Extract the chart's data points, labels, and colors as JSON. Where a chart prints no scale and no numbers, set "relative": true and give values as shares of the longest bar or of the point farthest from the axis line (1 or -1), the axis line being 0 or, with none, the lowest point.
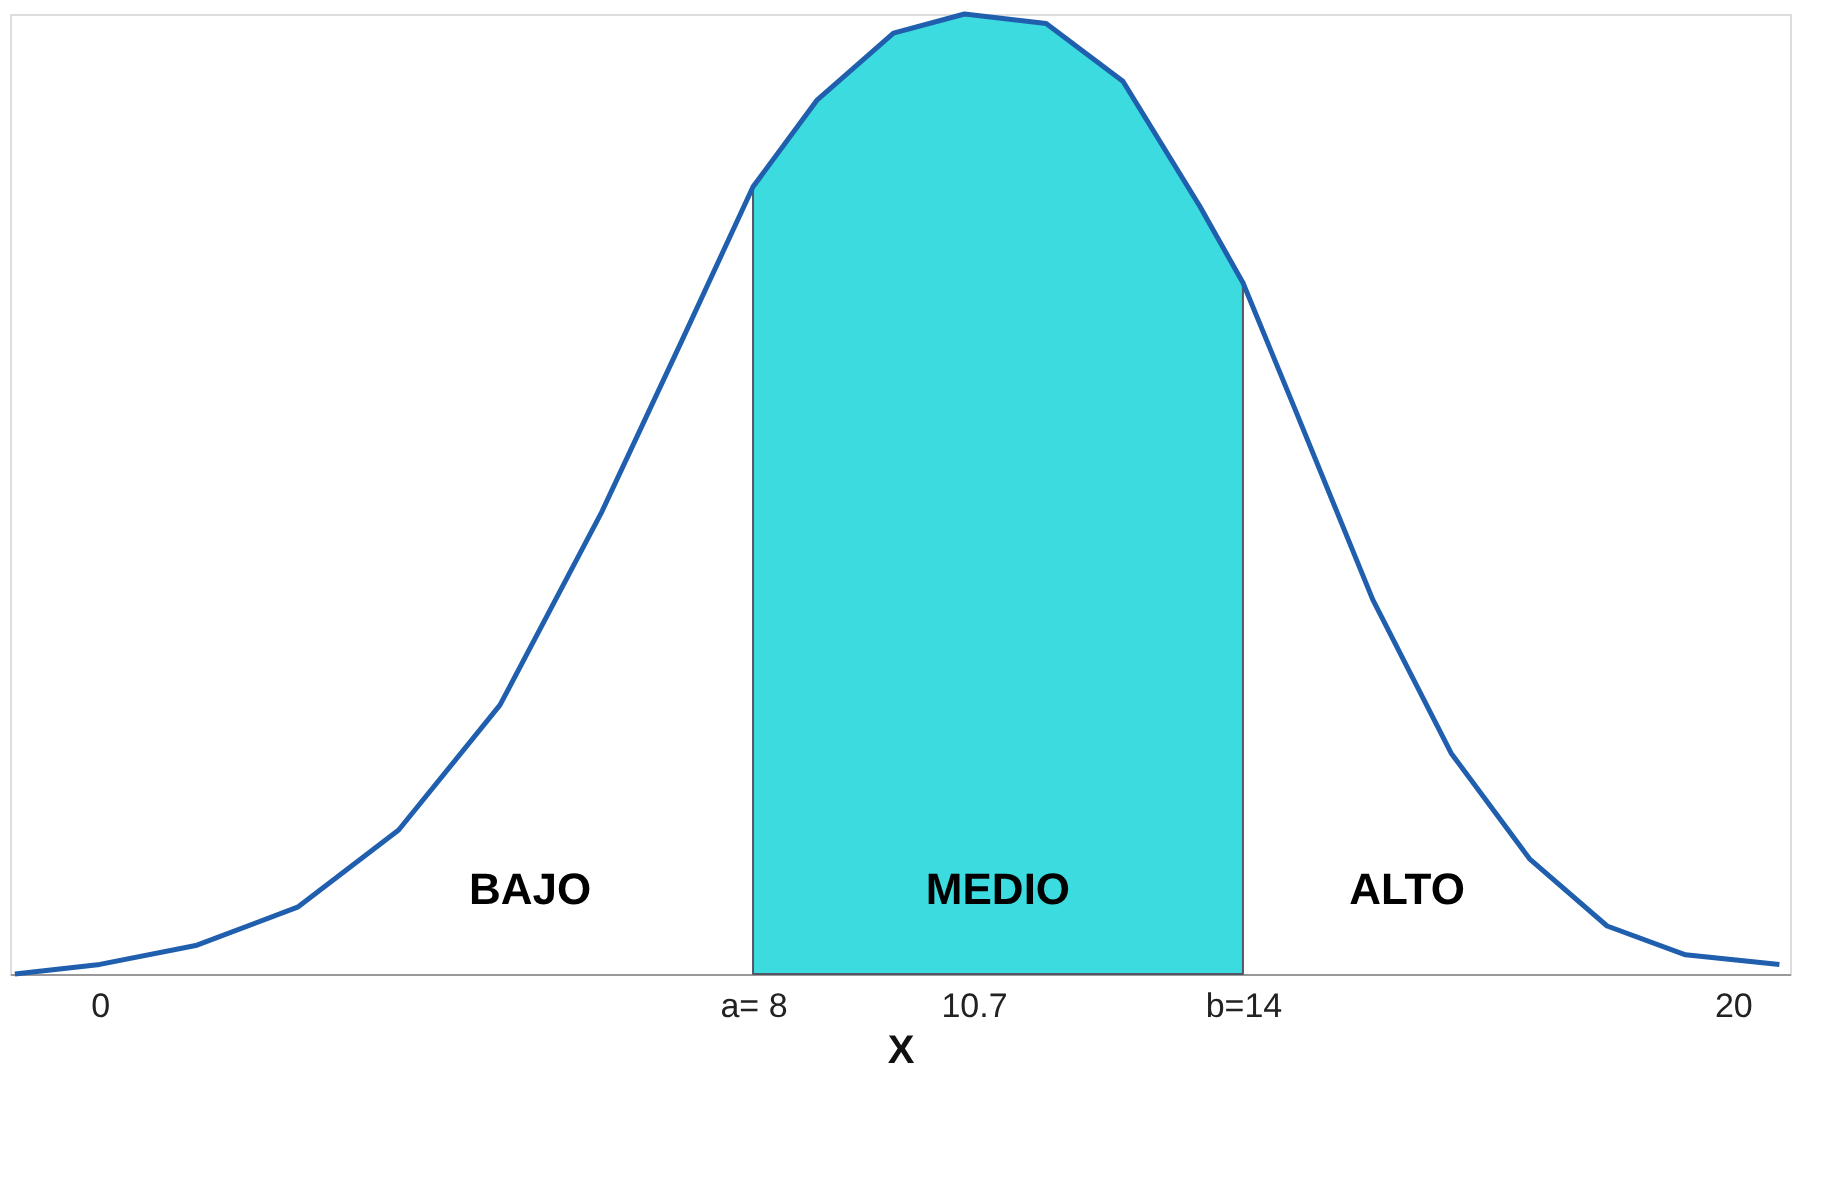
{
  "chart_data": {
    "type": "line",
    "relative": true,
    "xlabel": "X",
    "xlim": [
      -1.1,
      20.7
    ],
    "xticks": [
      0,
      {
        "value": 8,
        "label": "a= 8"
      },
      10.7,
      {
        "value": 14,
        "label": "b=14"
      },
      20
    ],
    "grid": false,
    "series": [
      {
        "type": "area",
        "color": "#3bdbdf",
        "x": [
          8,
          8.78,
          9.72,
          10.59,
          11.59,
          12.53,
          13.47,
          14
        ],
        "values": [
          0.82,
          0.91,
          0.98,
          1,
          0.99,
          0.93,
          0.8,
          0.72
        ]
      },
      {
        "color": "#1f5fae",
        "x": [
          -1.04,
          0,
          1.19,
          2.43,
          3.66,
          4.9,
          6.14,
          7.13,
          8,
          8.78,
          9.72,
          10.59,
          11.59,
          12.53,
          13.47,
          14,
          14.63,
          15.59,
          16.55,
          17.51,
          18.46,
          19.42,
          20.57
        ],
        "values": [
          0,
          0.01,
          0.03,
          0.07,
          0.15,
          0.28,
          0.48,
          0.66,
          0.82,
          0.91,
          0.98,
          1,
          0.99,
          0.93,
          0.8,
          0.72,
          0.59,
          0.39,
          0.23,
          0.12,
          0.05,
          0.02,
          0.01
        ]
      }
    ],
    "annotations": [
      "BAJO",
      "MEDIO",
      "ALTO"
    ]
  }
}
